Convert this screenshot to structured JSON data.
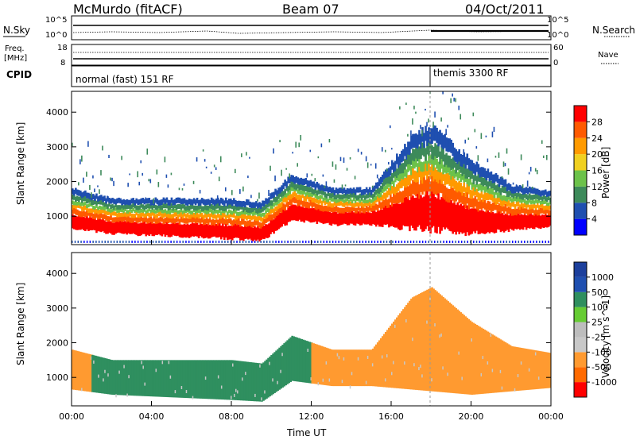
{
  "header": {
    "station": "McMurdo (fitACF)",
    "beam": "Beam 07",
    "date": "04/Oct/2011"
  },
  "summary_panels": {
    "nsky_label": "N.Sky",
    "nsearch_label": "N.Search",
    "nsky_ticks": [
      "10^5",
      "10^0"
    ],
    "nsearch_ticks": [
      "10^5",
      "10^0"
    ],
    "freq_label": "Freq.",
    "freq_unit": "[MHz]",
    "freq_ticks": [
      "18",
      "8"
    ],
    "nave_label": "Nave",
    "nave_ticks": [
      "60",
      "0"
    ],
    "cpid_label": "CPID",
    "cpid_modes": [
      "normal (fast) 151 RF",
      "themis 3300 RF"
    ]
  },
  "colors": {
    "power_scale": [
      "#0000ff",
      "#1f4fb0",
      "#3d8a5a",
      "#6cc24a",
      "#f0d020",
      "#ff9a00",
      "#ff5a00",
      "#ff0000"
    ],
    "velocity_scale": [
      "#ff0000",
      "#ff6a00",
      "#ff9a30",
      "#c8c8c8",
      "#bdbdbd",
      "#66cc33",
      "#2f8f5f",
      "#1f4fb0",
      "#1c3f9c"
    ]
  },
  "chart_data": [
    {
      "type": "heatmap",
      "title": "",
      "ylabel": "Slant Range [km]",
      "xlabel": "",
      "xlim": [
        "00:00",
        "24:00"
      ],
      "ylim": [
        180,
        4600
      ],
      "yticks": [
        "1000",
        "2000",
        "3000",
        "4000"
      ],
      "colorbar": {
        "label": "Power [dB]",
        "ticks": [
          "4",
          "8",
          "12",
          "16",
          "20",
          "24",
          "28"
        ],
        "range": [
          0,
          30
        ]
      },
      "echo_band_km": [
        {
          "time": "00:00",
          "lower": 650,
          "upper": 1800
        },
        {
          "time": "02:00",
          "lower": 500,
          "upper": 1500
        },
        {
          "time": "04:00",
          "lower": 450,
          "upper": 1500
        },
        {
          "time": "06:00",
          "lower": 400,
          "upper": 1500
        },
        {
          "time": "08:00",
          "lower": 350,
          "upper": 1500
        },
        {
          "time": "09:30",
          "lower": 300,
          "upper": 1400
        },
        {
          "time": "11:00",
          "lower": 900,
          "upper": 2200
        },
        {
          "time": "13:00",
          "lower": 750,
          "upper": 1800
        },
        {
          "time": "15:00",
          "lower": 750,
          "upper": 1800
        },
        {
          "time": "17:00",
          "lower": 650,
          "upper": 3300
        },
        {
          "time": "18:00",
          "lower": 600,
          "upper": 3600
        },
        {
          "time": "20:00",
          "lower": 500,
          "upper": 2600
        },
        {
          "time": "22:00",
          "lower": 600,
          "upper": 1900
        },
        {
          "time": "24:00",
          "lower": 700,
          "upper": 1700
        }
      ]
    },
    {
      "type": "heatmap",
      "title": "",
      "ylabel": "Slant Range [km]",
      "xlabel": "Time UT",
      "xlim": [
        "00:00",
        "24:00"
      ],
      "ylim": [
        180,
        4600
      ],
      "yticks": [
        "1000",
        "2000",
        "3000",
        "4000"
      ],
      "xticks": [
        "00:00",
        "04:00",
        "08:00",
        "12:00",
        "16:00",
        "20:00",
        "00:00"
      ],
      "colorbar": {
        "label": "Velocity [m s^-1]",
        "ticks": [
          "1000",
          "500",
          "100",
          "25",
          "-25",
          "-100",
          "-500",
          "-1000"
        ],
        "range": [
          -1000,
          1000
        ]
      },
      "velocity_segments": [
        {
          "start": "00:00",
          "end": "01:00",
          "velocity": -300
        },
        {
          "start": "01:00",
          "end": "05:00",
          "velocity": 150
        },
        {
          "start": "05:00",
          "end": "11:00",
          "velocity": 400
        },
        {
          "start": "11:00",
          "end": "12:00",
          "velocity": 350
        },
        {
          "start": "12:00",
          "end": "24:00",
          "velocity": -300
        }
      ]
    }
  ]
}
